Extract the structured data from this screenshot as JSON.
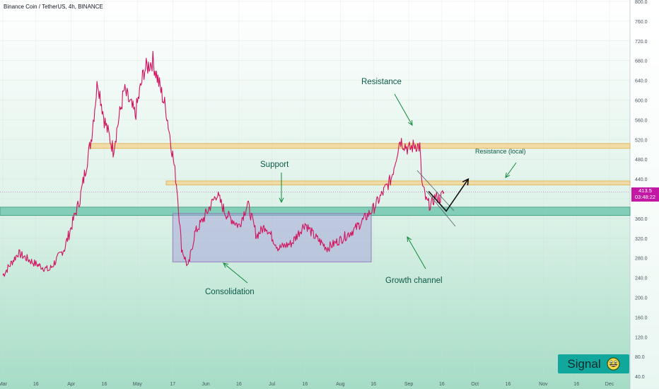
{
  "header": {
    "title": "Binance Coin / TetherUS, 4h, BINANCE"
  },
  "price_tag": {
    "price": "413.5",
    "countdown": "03:48:22"
  },
  "badge": {
    "label": "Signal",
    "icon": "smiley-face-icon"
  },
  "annotations": {
    "resistance": "Resistance",
    "resistance_local": "Resistance (local)",
    "support": "Support",
    "consolidation": "Consolidation",
    "growth_channel": "Growth channel"
  },
  "colors": {
    "price_line": "#d1135f",
    "resistance_zone": "#f3d38d",
    "support_zone": "#5bbfa4",
    "consolidation_box": "#a8a8d8",
    "annotation_text": "#0b5a48",
    "arrow": "#0f8a38",
    "price_tag": "#c218a4",
    "badge": "#12a79d"
  },
  "chart_data": {
    "type": "line",
    "title": "Binance Coin / TetherUS, 4h, BINANCE",
    "xlabel": "",
    "ylabel": "",
    "x_ticks": [
      "Mar",
      "16",
      "Apr",
      "16",
      "May",
      "17",
      "Jun",
      "16",
      "Jul",
      "16",
      "Aug",
      "16",
      "Sep",
      "16",
      "Oct",
      "16",
      "Nov",
      "16",
      "Dec"
    ],
    "y_ticks": [
      40,
      80,
      120,
      160,
      200,
      240,
      280,
      320,
      360,
      400,
      440,
      480,
      520,
      560,
      600,
      640,
      680,
      720,
      760,
      800
    ],
    "ylim": [
      40,
      800
    ],
    "series": [
      {
        "x": [
          "2021-03-01",
          "2021-03-08",
          "2021-03-15",
          "2021-03-22",
          "2021-03-29",
          "2021-04-05",
          "2021-04-10",
          "2021-04-13",
          "2021-04-16",
          "2021-04-20",
          "2021-04-25",
          "2021-04-30",
          "2021-05-04",
          "2021-05-08",
          "2021-05-11",
          "2021-05-14",
          "2021-05-17",
          "2021-05-19",
          "2021-05-21",
          "2021-05-24",
          "2021-05-27",
          "2021-05-31",
          "2021-06-06",
          "2021-06-10",
          "2021-06-16",
          "2021-06-20",
          "2021-06-24",
          "2021-06-28",
          "2021-07-04",
          "2021-07-10",
          "2021-07-16",
          "2021-07-20",
          "2021-07-26",
          "2021-08-02",
          "2021-08-08",
          "2021-08-12",
          "2021-08-16",
          "2021-08-20",
          "2021-08-24",
          "2021-08-28",
          "2021-09-01",
          "2021-09-04",
          "2021-09-06",
          "2021-09-07",
          "2021-09-09",
          "2021-09-11",
          "2021-09-13",
          "2021-09-15",
          "2021-09-17"
        ],
        "values": [
          245,
          290,
          270,
          255,
          300,
          400,
          520,
          640,
          560,
          500,
          620,
          570,
          660,
          680,
          630,
          580,
          490,
          420,
          300,
          260,
          330,
          360,
          410,
          370,
          345,
          390,
          325,
          345,
          300,
          310,
          350,
          325,
          300,
          320,
          340,
          360,
          380,
          410,
          440,
          520,
          500,
          510,
          505,
          430,
          395,
          385,
          405,
          400,
          413.5
        ]
      }
    ],
    "zones": [
      {
        "label": "Resistance",
        "from": 502,
        "to": 512
      },
      {
        "label": "Resistance (local)",
        "from": 428,
        "to": 436
      },
      {
        "label": "Support",
        "from": 366,
        "to": 383
      }
    ],
    "consolidation_box": {
      "label": "Consolidation",
      "x_from": "2021-05-17",
      "x_to": "2021-08-15",
      "y_from": 272,
      "y_to": 370
    },
    "projection": {
      "x": [
        "2021-09-10",
        "2021-09-18",
        "2021-09-28"
      ],
      "values": [
        415,
        375,
        440
      ]
    },
    "grid": true,
    "legend": "none"
  }
}
